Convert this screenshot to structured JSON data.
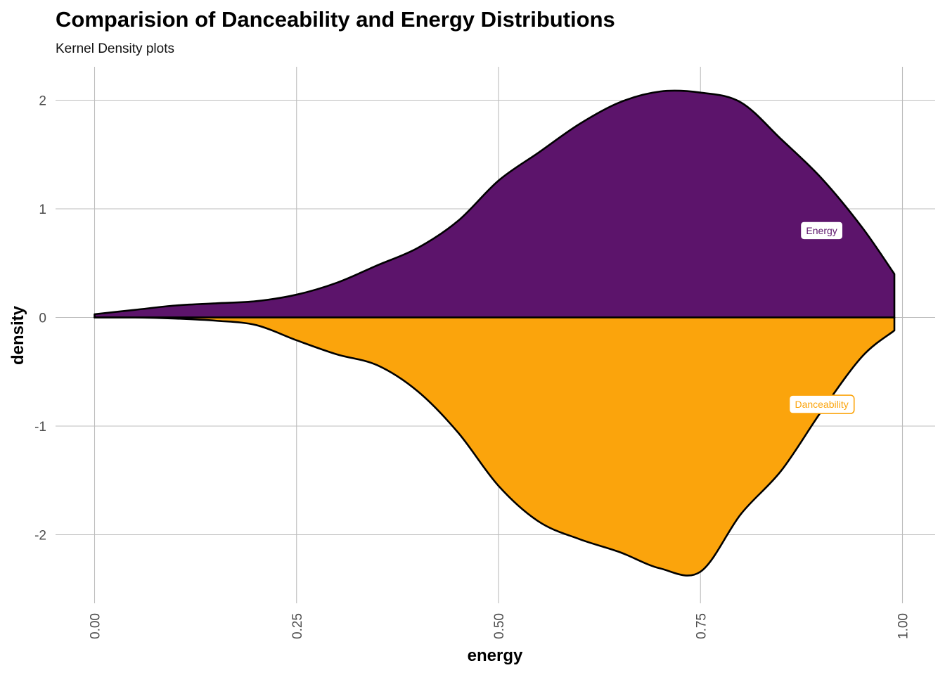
{
  "chart_data": {
    "type": "area",
    "title": "Comparision of Danceability and Energy Distributions",
    "subtitle": "Kernel Density plots",
    "xlabel": "energy",
    "ylabel": "density",
    "xlim": [
      0,
      1
    ],
    "ylim": [
      -2.5,
      2.2
    ],
    "x_ticks": [
      {
        "value": 0,
        "label": "0.00"
      },
      {
        "value": 0.25,
        "label": "0.25"
      },
      {
        "value": 0.5,
        "label": "0.50"
      },
      {
        "value": 0.75,
        "label": "0.75"
      },
      {
        "value": 1,
        "label": "1.00"
      }
    ],
    "y_ticks": [
      {
        "value": 2,
        "label": "2"
      },
      {
        "value": 1,
        "label": "1"
      },
      {
        "value": 0,
        "label": "0"
      },
      {
        "value": -1,
        "label": "-1"
      },
      {
        "value": -2,
        "label": "-2"
      }
    ],
    "grid": true,
    "series": [
      {
        "name": "Energy",
        "direction": "up",
        "color": "#5c146b",
        "x": [
          0.0,
          0.05,
          0.1,
          0.15,
          0.2,
          0.25,
          0.3,
          0.35,
          0.4,
          0.45,
          0.5,
          0.55,
          0.6,
          0.65,
          0.7,
          0.75,
          0.8,
          0.85,
          0.9,
          0.95,
          0.99
        ],
        "y": [
          0.03,
          0.07,
          0.11,
          0.13,
          0.15,
          0.21,
          0.32,
          0.48,
          0.64,
          0.89,
          1.26,
          1.52,
          1.78,
          1.98,
          2.08,
          2.07,
          1.98,
          1.64,
          1.28,
          0.83,
          0.4
        ]
      },
      {
        "name": "Danceability",
        "direction": "down",
        "color": "#fba40c",
        "x": [
          0.0,
          0.05,
          0.1,
          0.15,
          0.2,
          0.25,
          0.3,
          0.35,
          0.4,
          0.45,
          0.5,
          0.55,
          0.6,
          0.65,
          0.7,
          0.75,
          0.8,
          0.85,
          0.9,
          0.95,
          0.99
        ],
        "y": [
          0.0,
          0.0,
          -0.01,
          -0.03,
          -0.07,
          -0.21,
          -0.34,
          -0.44,
          -0.68,
          -1.06,
          -1.55,
          -1.88,
          -2.04,
          -2.16,
          -2.31,
          -2.34,
          -1.81,
          -1.41,
          -0.86,
          -0.36,
          -0.12
        ]
      }
    ],
    "annotations": [
      {
        "text": "Energy",
        "series": "Energy",
        "x": 0.9,
        "y": 0.8
      },
      {
        "text": "Danceability",
        "series": "Danceability",
        "x": 0.9,
        "y": -0.8
      }
    ]
  }
}
